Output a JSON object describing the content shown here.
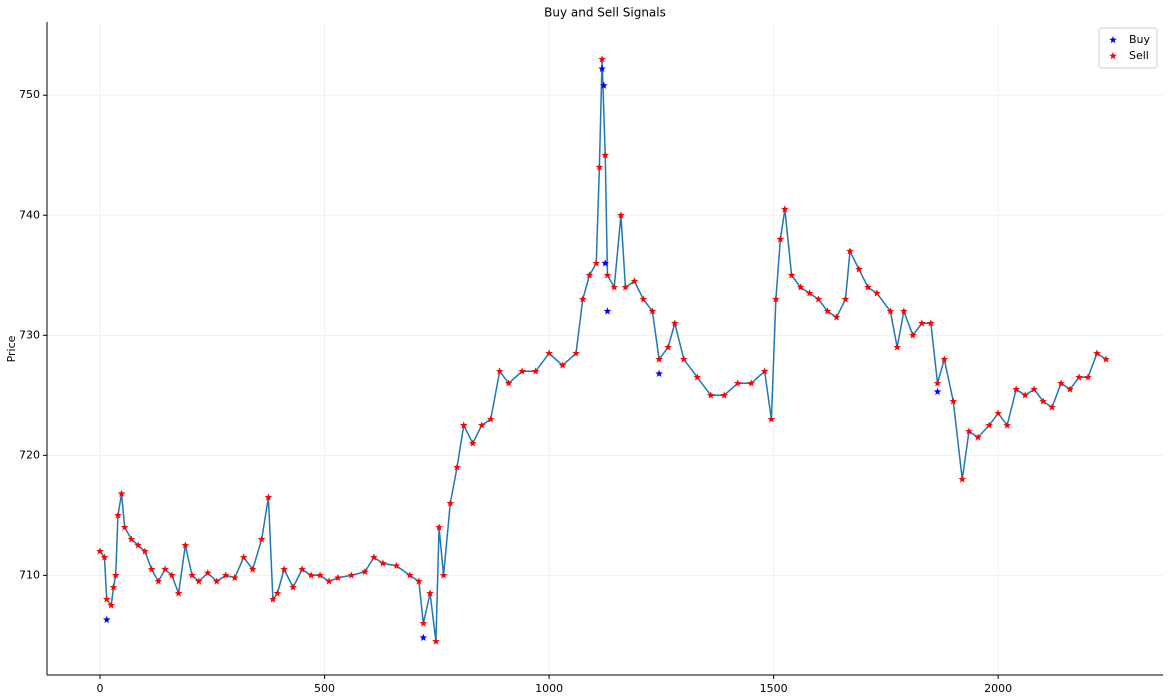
{
  "chart_data": {
    "type": "line",
    "title": "Buy and Sell Signals",
    "y_label": "Price",
    "xlim": [
      -118,
      2367
    ],
    "ylim": [
      701.7,
      756.1
    ],
    "xticks": [
      0,
      500,
      1000,
      1500,
      2000
    ],
    "yticks": [
      710,
      720,
      730,
      740,
      750
    ],
    "grid": true,
    "legend": "upper right",
    "series": [
      {
        "color": "#1f77b4",
        "x": [
          0,
          10,
          15,
          25,
          30,
          35,
          40,
          48,
          55,
          70,
          85,
          100,
          115,
          130,
          145,
          160,
          175,
          190,
          205,
          220,
          240,
          260,
          280,
          300,
          320,
          340,
          360,
          375,
          385,
          395,
          410,
          430,
          450,
          470,
          490,
          510,
          530,
          560,
          590,
          610,
          630,
          660,
          690,
          710,
          720,
          735,
          748,
          755,
          765,
          780,
          795,
          810,
          830,
          850,
          870,
          890,
          910,
          940,
          970,
          1000,
          1030,
          1060,
          1075,
          1090,
          1105,
          1112,
          1118,
          1125,
          1130,
          1145,
          1160,
          1170,
          1190,
          1210,
          1230,
          1245,
          1265,
          1280,
          1300,
          1330,
          1360,
          1390,
          1420,
          1450,
          1480,
          1495,
          1505,
          1515,
          1525,
          1540,
          1560,
          1580,
          1600,
          1620,
          1640,
          1660,
          1670,
          1690,
          1710,
          1730,
          1760,
          1775,
          1790,
          1810,
          1830,
          1850,
          1865,
          1880,
          1900,
          1920,
          1935,
          1955,
          1980,
          2000,
          2020,
          2040,
          2060,
          2080,
          2100,
          2120,
          2140,
          2160,
          2180,
          2200,
          2220,
          2240
        ],
        "values": [
          712,
          711.5,
          708,
          707.5,
          709,
          710,
          715,
          716.8,
          714,
          713,
          712.5,
          712,
          710.5,
          709.5,
          710.5,
          710,
          708.5,
          712.5,
          710,
          709.5,
          710.2,
          709.5,
          710,
          709.8,
          711.5,
          710.5,
          713,
          716.5,
          708,
          708.5,
          710.5,
          709,
          710.5,
          710,
          710,
          709.5,
          709.8,
          710,
          710.3,
          711.5,
          711,
          710.8,
          710,
          709.5,
          706,
          708.5,
          704.5,
          714,
          710,
          716,
          719,
          722.5,
          721,
          722.5,
          723,
          727,
          726,
          727,
          727,
          728.5,
          727.5,
          728.5,
          733,
          735,
          736,
          744,
          753,
          745,
          735,
          734,
          740,
          734,
          734.5,
          733,
          732,
          728,
          729,
          731,
          728,
          726.5,
          725,
          725,
          726,
          726,
          727,
          723,
          733,
          738,
          740.5,
          735,
          734,
          733.5,
          733,
          732,
          731.5,
          733,
          737,
          735.5,
          734,
          733.5,
          732,
          729,
          732,
          730,
          731,
          731,
          726,
          728,
          724.5,
          718,
          722,
          721.5,
          722.5,
          723.5,
          722.5,
          725.5,
          725,
          725.5,
          724.5,
          724,
          726,
          725.5,
          726.5,
          726.5,
          728.5,
          728
        ]
      },
      {
        "type": "scatter",
        "name": "Buy",
        "color": "#0000ff",
        "x": [
          15,
          720,
          1118,
          1122,
          1125,
          1130,
          1245,
          1865
        ],
        "values": [
          706.3,
          704.8,
          752.2,
          750.8,
          736,
          732,
          726.8,
          725.3
        ]
      },
      {
        "type": "scatter",
        "name": "Sell",
        "color": "#ff0000",
        "x": [
          0,
          10,
          15,
          25,
          30,
          35,
          40,
          48,
          55,
          70,
          85,
          100,
          115,
          130,
          145,
          160,
          175,
          190,
          205,
          220,
          240,
          260,
          280,
          300,
          320,
          340,
          360,
          375,
          385,
          395,
          410,
          430,
          450,
          470,
          490,
          510,
          530,
          560,
          590,
          610,
          630,
          660,
          690,
          710,
          720,
          735,
          748,
          755,
          765,
          780,
          795,
          810,
          830,
          850,
          870,
          890,
          910,
          940,
          970,
          1000,
          1030,
          1060,
          1075,
          1090,
          1105,
          1112,
          1118,
          1125,
          1130,
          1145,
          1160,
          1170,
          1190,
          1210,
          1230,
          1245,
          1265,
          1280,
          1300,
          1330,
          1360,
          1390,
          1420,
          1450,
          1480,
          1495,
          1505,
          1515,
          1525,
          1540,
          1560,
          1580,
          1600,
          1620,
          1640,
          1660,
          1670,
          1690,
          1710,
          1730,
          1760,
          1775,
          1790,
          1810,
          1830,
          1850,
          1865,
          1880,
          1900,
          1920,
          1935,
          1955,
          1980,
          2000,
          2020,
          2040,
          2060,
          2080,
          2100,
          2120,
          2140,
          2160,
          2180,
          2200,
          2220,
          2240
        ],
        "values": [
          712,
          711.5,
          708,
          707.5,
          709,
          710,
          715,
          716.8,
          714,
          713,
          712.5,
          712,
          710.5,
          709.5,
          710.5,
          710,
          708.5,
          712.5,
          710,
          709.5,
          710.2,
          709.5,
          710,
          709.8,
          711.5,
          710.5,
          713,
          716.5,
          708,
          708.5,
          710.5,
          709,
          710.5,
          710,
          710,
          709.5,
          709.8,
          710,
          710.3,
          711.5,
          711,
          710.8,
          710,
          709.5,
          706,
          708.5,
          704.5,
          714,
          710,
          716,
          719,
          722.5,
          721,
          722.5,
          723,
          727,
          726,
          727,
          727,
          728.5,
          727.5,
          728.5,
          733,
          735,
          736,
          744,
          753,
          745,
          735,
          734,
          740,
          734,
          734.5,
          733,
          732,
          728,
          729,
          731,
          728,
          726.5,
          725,
          725,
          726,
          726,
          727,
          723,
          733,
          738,
          740.5,
          735,
          734,
          733.5,
          733,
          732,
          731.5,
          733,
          737,
          735.5,
          734,
          733.5,
          732,
          729,
          732,
          730,
          731,
          731,
          726,
          728,
          724.5,
          718,
          722,
          721.5,
          722.5,
          723.5,
          722.5,
          725.5,
          725,
          725.5,
          724.5,
          724,
          726,
          725.5,
          726.5,
          726.5,
          728.5,
          728
        ]
      }
    ]
  }
}
